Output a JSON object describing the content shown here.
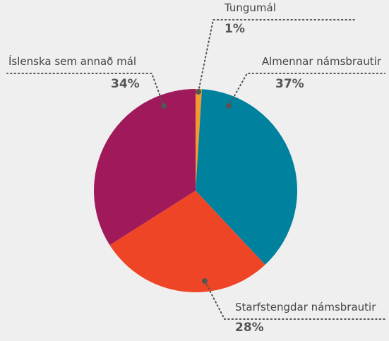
{
  "chart_data": {
    "type": "pie",
    "categories": [
      "Tungumál",
      "Almennar námsbrautir",
      "Starfstengdar námsbrautir",
      "Íslenska sem annað mál"
    ],
    "values": [
      1,
      37,
      28,
      34
    ],
    "value_labels": [
      "1%",
      "37%",
      "28%",
      "34%"
    ],
    "colors": [
      "#f29a2e",
      "#00829e",
      "#ef4527",
      "#a0195b"
    ]
  }
}
